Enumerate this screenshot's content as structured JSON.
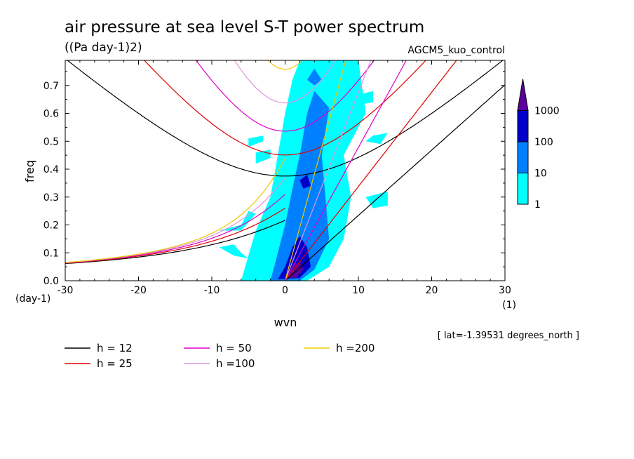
{
  "chart_data": {
    "type": "heatmap",
    "title": "air pressure at sea level S-T power spectrum",
    "subtitle": "((Pa day-1)2)",
    "run_label": "AGCM5_kuo_control",
    "xlabel": "wvn",
    "ylabel": "freq",
    "x_unit": "(1)",
    "y_unit": "(day-1)",
    "xlim": [
      -30,
      30
    ],
    "ylim": [
      0,
      0.79
    ],
    "x_ticks": [
      -30,
      -20,
      -10,
      0,
      10,
      20,
      30
    ],
    "x_tick_labels": [
      "-30",
      "-20",
      "-10",
      "0",
      "10",
      "20",
      "30"
    ],
    "y_ticks": [
      0.0,
      0.1,
      0.2,
      0.3,
      0.4,
      0.5,
      0.6,
      0.7
    ],
    "y_tick_labels": [
      "0.0",
      "0.1",
      "0.2",
      "0.3",
      "0.4",
      "0.5",
      "0.6",
      "0.7"
    ],
    "footnote": "[ lat=-1.39531 degrees_north ]",
    "colorbar": {
      "levels": [
        "1",
        "10",
        "100",
        "1000"
      ],
      "colors": [
        "#00ffff",
        "#0080ff",
        "#0000c8",
        "#5a009c"
      ]
    },
    "power_regions": [
      {
        "level": 0,
        "polygon": [
          [
            -6,
            0
          ],
          [
            -4,
            0.18
          ],
          [
            -2,
            0.3
          ],
          [
            -1,
            0.45
          ],
          [
            0,
            0.6
          ],
          [
            1,
            0.72
          ],
          [
            2,
            0.79
          ],
          [
            10,
            0.79
          ],
          [
            11,
            0.6
          ],
          [
            8,
            0.45
          ],
          [
            9,
            0.3
          ],
          [
            8,
            0.15
          ],
          [
            6,
            0.05
          ],
          [
            3,
            0
          ]
        ]
      },
      {
        "level": 0,
        "polygon": [
          [
            -3.5,
            0.07
          ],
          [
            -3,
            0.04
          ],
          [
            -2,
            0.03
          ],
          [
            -2.5,
            0.06
          ]
        ]
      },
      {
        "level": 0,
        "polygon": [
          [
            -9,
            0.12
          ],
          [
            -7,
            0.13
          ],
          [
            -6,
            0.1
          ],
          [
            -5,
            0.08
          ],
          [
            -7,
            0.09
          ]
        ]
      },
      {
        "level": 0,
        "polygon": [
          [
            -9,
            0.18
          ],
          [
            -6,
            0.2
          ],
          [
            -5,
            0.25
          ],
          [
            -4,
            0.24
          ],
          [
            -6,
            0.18
          ]
        ]
      },
      {
        "level": 0,
        "polygon": [
          [
            -4,
            0.42
          ],
          [
            -2,
            0.44
          ],
          [
            -2,
            0.47
          ],
          [
            -4,
            0.46
          ]
        ]
      },
      {
        "level": 0,
        "polygon": [
          [
            11,
            0.3
          ],
          [
            14,
            0.32
          ],
          [
            14,
            0.27
          ],
          [
            12,
            0.26
          ]
        ]
      },
      {
        "level": 0,
        "polygon": [
          [
            9,
            0.66
          ],
          [
            12,
            0.68
          ],
          [
            12,
            0.64
          ],
          [
            10,
            0.63
          ]
        ]
      },
      {
        "level": 0,
        "polygon": [
          [
            -5,
            0.48
          ],
          [
            -3,
            0.5
          ],
          [
            -3,
            0.52
          ],
          [
            -5,
            0.51
          ]
        ]
      },
      {
        "level": 0,
        "polygon": [
          [
            12,
            0.52
          ],
          [
            14,
            0.53
          ],
          [
            13,
            0.49
          ],
          [
            11,
            0.5
          ]
        ]
      },
      {
        "level": 1,
        "polygon": [
          [
            -2,
            0
          ],
          [
            -1,
            0.1
          ],
          [
            0,
            0.2
          ],
          [
            1,
            0.33
          ],
          [
            2,
            0.45
          ],
          [
            3,
            0.6
          ],
          [
            4,
            0.68
          ],
          [
            6,
            0.62
          ],
          [
            5,
            0.45
          ],
          [
            5.5,
            0.3
          ],
          [
            6,
            0.15
          ],
          [
            4,
            0.04
          ],
          [
            2,
            0
          ]
        ]
      },
      {
        "level": 1,
        "polygon": [
          [
            3,
            0.72
          ],
          [
            4,
            0.76
          ],
          [
            5,
            0.72
          ],
          [
            4,
            0.7
          ]
        ]
      },
      {
        "level": 2,
        "polygon": [
          [
            -1,
            0.005
          ],
          [
            0,
            0.05
          ],
          [
            1,
            0.12
          ],
          [
            2,
            0.16
          ],
          [
            3,
            0.12
          ],
          [
            3.5,
            0.05
          ],
          [
            2,
            0.01
          ]
        ]
      },
      {
        "level": 2,
        "polygon": [
          [
            2,
            0.36
          ],
          [
            3,
            0.38
          ],
          [
            3.5,
            0.34
          ],
          [
            2.5,
            0.33
          ]
        ]
      },
      {
        "level": 3,
        "polygon": [
          [
            0.5,
            0.01
          ],
          [
            1,
            0.05
          ],
          [
            2,
            0.07
          ],
          [
            2.5,
            0.04
          ],
          [
            1.5,
            0.01
          ]
        ]
      }
    ],
    "dispersion_curves": [
      {
        "name": "h = 12",
        "color": "#000000",
        "equivalent_depth": 12
      },
      {
        "name": "h = 25",
        "color": "#e00000",
        "equivalent_depth": 25
      },
      {
        "name": "h = 50",
        "color": "#e000c8",
        "equivalent_depth": 50
      },
      {
        "name": "h =100",
        "color": "#dc96dc",
        "equivalent_depth": 100
      },
      {
        "name": "h =200",
        "color": "#f0c800",
        "equivalent_depth": 200
      }
    ]
  }
}
